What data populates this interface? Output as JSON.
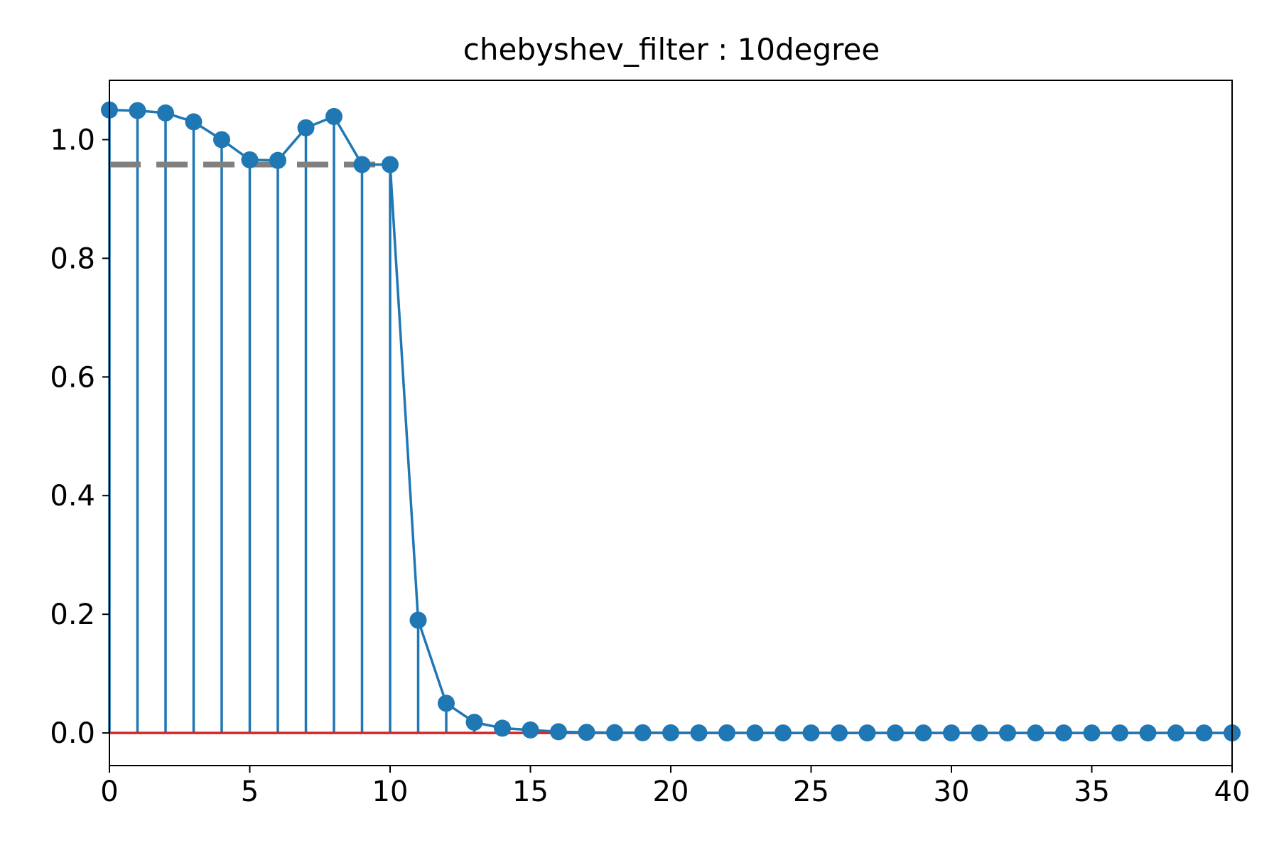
{
  "chart_data": {
    "type": "stem",
    "title": "chebyshev_filter : 10degree",
    "xlabel": "",
    "ylabel": "",
    "xlim": [
      0,
      40
    ],
    "ylim": [
      -0.055,
      1.1
    ],
    "x_ticks": [
      0,
      5,
      10,
      15,
      20,
      25,
      30,
      35,
      40
    ],
    "x_tick_labels": [
      "0",
      "5",
      "10",
      "15",
      "20",
      "25",
      "30",
      "35",
      "40"
    ],
    "y_ticks": [
      0.0,
      0.2,
      0.4,
      0.6,
      0.8,
      1.0
    ],
    "y_tick_labels": [
      "0.0",
      "0.2",
      "0.4",
      "0.6",
      "0.8",
      "1.0"
    ],
    "grid": false,
    "legend": "none",
    "series": [
      {
        "style": "stem-with-line",
        "color": "#1f77b4",
        "x": [
          0,
          1,
          2,
          3,
          4,
          5,
          6,
          7,
          8,
          9,
          10,
          11,
          12,
          13,
          14,
          15,
          16,
          17,
          18,
          19,
          20,
          21,
          22,
          23,
          24,
          25,
          26,
          27,
          28,
          29,
          30,
          31,
          32,
          33,
          34,
          35,
          36,
          37,
          38,
          39,
          40
        ],
        "y": [
          1.05,
          1.049,
          1.045,
          1.03,
          1.0,
          0.966,
          0.965,
          1.02,
          1.039,
          0.958,
          0.958,
          0.19,
          0.05,
          0.018,
          0.008,
          0.005,
          0.002,
          0.001,
          0.0005,
          0.0003,
          0.0002,
          0.0001,
          0.0001,
          0.0,
          0.0,
          0.0,
          0.0,
          0.0,
          0.0,
          0.0,
          0.0,
          0.0,
          0.0,
          0.0,
          0.0,
          0.0,
          0.0,
          0.0,
          0.0,
          0.0,
          0.0
        ]
      }
    ],
    "baseline": {
      "y": 0.0,
      "color": "#d62728"
    },
    "reference_line": {
      "y": 0.958,
      "x_range": [
        0,
        10
      ],
      "color": "#808080",
      "style": "dashed"
    }
  }
}
